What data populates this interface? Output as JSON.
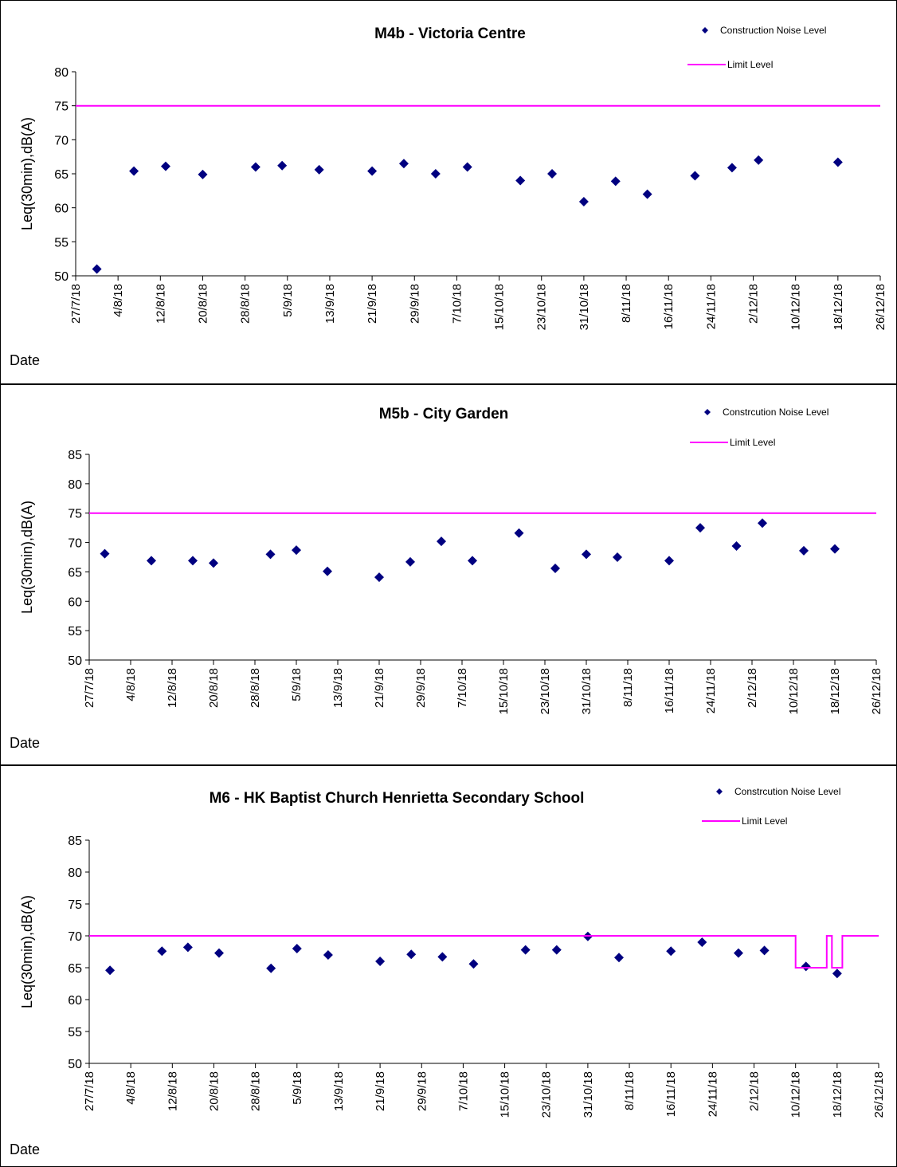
{
  "chart_data": [
    {
      "type": "scatter",
      "title": "M4b - Victoria Centre",
      "ylabel": "Leq(30min),dB(A)",
      "xlabel": "Date",
      "ylim": [
        50,
        80
      ],
      "yticks": [
        50,
        55,
        60,
        65,
        70,
        75,
        80
      ],
      "xlim": [
        "2018-07-27",
        "2018-12-26"
      ],
      "xtick_labels": [
        "27/7/18",
        "4/8/18",
        "12/8/18",
        "20/8/18",
        "28/8/18",
        "5/9/18",
        "13/9/18",
        "21/9/18",
        "29/9/18",
        "7/10/18",
        "15/10/18",
        "23/10/18",
        "31/10/18",
        "8/11/18",
        "16/11/18",
        "24/11/18",
        "2/12/18",
        "10/12/18",
        "18/12/18",
        "26/12/18"
      ],
      "grid": false,
      "legend": "top-right",
      "series": [
        {
          "name": "Construction Noise Level",
          "color": "#000080",
          "marker": "diamond",
          "points": [
            {
              "x": "2018-07-31",
              "y": 51.0
            },
            {
              "x": "2018-08-07",
              "y": 65.4
            },
            {
              "x": "2018-08-13",
              "y": 66.1
            },
            {
              "x": "2018-08-20",
              "y": 64.9
            },
            {
              "x": "2018-08-30",
              "y": 66.0
            },
            {
              "x": "2018-09-04",
              "y": 66.2
            },
            {
              "x": "2018-09-11",
              "y": 65.6
            },
            {
              "x": "2018-09-21",
              "y": 65.4
            },
            {
              "x": "2018-09-27",
              "y": 66.5
            },
            {
              "x": "2018-10-03",
              "y": 65.0
            },
            {
              "x": "2018-10-09",
              "y": 66.0
            },
            {
              "x": "2018-10-19",
              "y": 64.0
            },
            {
              "x": "2018-10-25",
              "y": 65.0
            },
            {
              "x": "2018-10-31",
              "y": 60.9
            },
            {
              "x": "2018-11-06",
              "y": 63.9
            },
            {
              "x": "2018-11-12",
              "y": 62.0
            },
            {
              "x": "2018-11-21",
              "y": 64.7
            },
            {
              "x": "2018-11-28",
              "y": 65.9
            },
            {
              "x": "2018-12-03",
              "y": 67.0
            },
            {
              "x": "2018-12-18",
              "y": 66.7
            }
          ]
        },
        {
          "name": "Limit Level",
          "color": "#ff00ff",
          "type": "line",
          "points": [
            {
              "x": "2018-07-27",
              "y": 75
            },
            {
              "x": "2018-12-26",
              "y": 75
            }
          ]
        }
      ]
    },
    {
      "type": "scatter",
      "title": "M5b - City Garden",
      "ylabel": "Leq(30min),dB(A)",
      "xlabel": "Date",
      "ylim": [
        50,
        85
      ],
      "yticks": [
        50,
        55,
        60,
        65,
        70,
        75,
        80,
        85
      ],
      "xlim": [
        "2018-07-27",
        "2018-12-26"
      ],
      "xtick_labels": [
        "27/7/18",
        "4/8/18",
        "12/8/18",
        "20/8/18",
        "28/8/18",
        "5/9/18",
        "13/9/18",
        "21/9/18",
        "29/9/18",
        "7/10/18",
        "15/10/18",
        "23/10/18",
        "31/10/18",
        "8/11/18",
        "16/11/18",
        "24/11/18",
        "2/12/18",
        "10/12/18",
        "18/12/18",
        "26/12/18"
      ],
      "grid": false,
      "legend": "top-right",
      "series": [
        {
          "name": "Constrcution Noise Level",
          "color": "#000080",
          "marker": "diamond",
          "points": [
            {
              "x": "2018-07-30",
              "y": 68.1
            },
            {
              "x": "2018-08-08",
              "y": 66.9
            },
            {
              "x": "2018-08-16",
              "y": 66.9
            },
            {
              "x": "2018-08-20",
              "y": 66.5
            },
            {
              "x": "2018-08-31",
              "y": 68.0
            },
            {
              "x": "2018-09-05",
              "y": 68.7
            },
            {
              "x": "2018-09-11",
              "y": 65.1
            },
            {
              "x": "2018-09-21",
              "y": 64.1
            },
            {
              "x": "2018-09-27",
              "y": 66.7
            },
            {
              "x": "2018-10-03",
              "y": 70.2
            },
            {
              "x": "2018-10-09",
              "y": 66.9
            },
            {
              "x": "2018-10-18",
              "y": 71.6
            },
            {
              "x": "2018-10-25",
              "y": 65.6
            },
            {
              "x": "2018-10-31",
              "y": 68.0
            },
            {
              "x": "2018-11-06",
              "y": 67.5
            },
            {
              "x": "2018-11-16",
              "y": 66.9
            },
            {
              "x": "2018-11-22",
              "y": 72.5
            },
            {
              "x": "2018-11-29",
              "y": 69.4
            },
            {
              "x": "2018-12-04",
              "y": 73.3
            },
            {
              "x": "2018-12-12",
              "y": 68.6
            },
            {
              "x": "2018-12-18",
              "y": 68.9
            }
          ]
        },
        {
          "name": "Limit Level",
          "color": "#ff00ff",
          "type": "line",
          "points": [
            {
              "x": "2018-07-27",
              "y": 75
            },
            {
              "x": "2018-12-26",
              "y": 75
            }
          ]
        }
      ]
    },
    {
      "type": "scatter",
      "title": "M6 - HK Baptist Church Henrietta Secondary School",
      "ylabel": "Leq(30min),dB(A)",
      "xlabel": "Date",
      "ylim": [
        50,
        85
      ],
      "yticks": [
        50,
        55,
        60,
        65,
        70,
        75,
        80,
        85
      ],
      "xlim": [
        "2018-07-27",
        "2018-12-26"
      ],
      "xtick_labels": [
        "27/7/18",
        "4/8/18",
        "12/8/18",
        "20/8/18",
        "28/8/18",
        "5/9/18",
        "13/9/18",
        "21/9/18",
        "29/9/18",
        "7/10/18",
        "15/10/18",
        "23/10/18",
        "31/10/18",
        "8/11/18",
        "16/11/18",
        "24/11/18",
        "2/12/18",
        "10/12/18",
        "18/12/18",
        "26/12/18"
      ],
      "grid": false,
      "legend": "top-right",
      "series": [
        {
          "name": "Constrcution Noise Level",
          "color": "#000080",
          "marker": "diamond",
          "points": [
            {
              "x": "2018-07-31",
              "y": 64.6
            },
            {
              "x": "2018-08-10",
              "y": 67.6
            },
            {
              "x": "2018-08-15",
              "y": 68.2
            },
            {
              "x": "2018-08-21",
              "y": 67.3
            },
            {
              "x": "2018-08-31",
              "y": 64.9
            },
            {
              "x": "2018-09-05",
              "y": 68.0
            },
            {
              "x": "2018-09-11",
              "y": 67.0
            },
            {
              "x": "2018-09-21",
              "y": 66.0
            },
            {
              "x": "2018-09-27",
              "y": 67.1
            },
            {
              "x": "2018-10-03",
              "y": 66.7
            },
            {
              "x": "2018-10-09",
              "y": 65.6
            },
            {
              "x": "2018-10-19",
              "y": 67.8
            },
            {
              "x": "2018-10-25",
              "y": 67.8
            },
            {
              "x": "2018-10-31",
              "y": 69.9
            },
            {
              "x": "2018-11-06",
              "y": 66.6
            },
            {
              "x": "2018-11-16",
              "y": 67.6
            },
            {
              "x": "2018-11-22",
              "y": 69.0
            },
            {
              "x": "2018-11-29",
              "y": 67.3
            },
            {
              "x": "2018-12-04",
              "y": 67.7
            },
            {
              "x": "2018-12-12",
              "y": 65.2
            },
            {
              "x": "2018-12-18",
              "y": 64.1
            }
          ]
        },
        {
          "name": "Limit Level",
          "color": "#ff00ff",
          "type": "line",
          "step": true,
          "points": [
            {
              "x": "2018-07-27",
              "y": 70
            },
            {
              "x": "2018-12-10",
              "y": 70
            },
            {
              "x": "2018-12-10",
              "y": 65
            },
            {
              "x": "2018-12-16",
              "y": 65
            },
            {
              "x": "2018-12-16",
              "y": 70
            },
            {
              "x": "2018-12-17",
              "y": 70
            },
            {
              "x": "2018-12-17",
              "y": 65
            },
            {
              "x": "2018-12-19",
              "y": 65
            },
            {
              "x": "2018-12-19",
              "y": 70
            },
            {
              "x": "2018-12-27",
              "y": 70
            }
          ]
        }
      ]
    }
  ]
}
